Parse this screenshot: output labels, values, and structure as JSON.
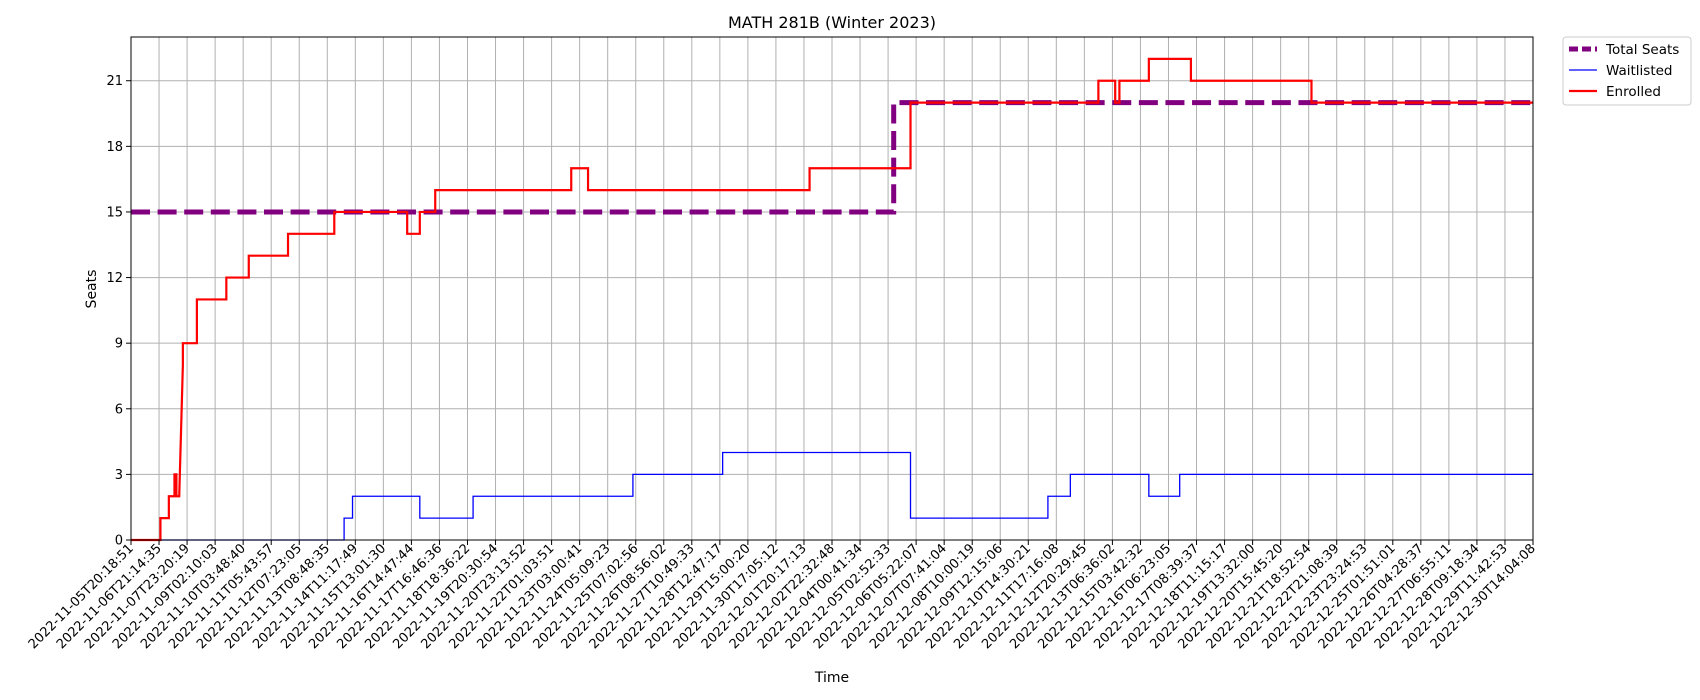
{
  "chart_data": {
    "type": "line",
    "title": "MATH 281B (Winter 2023)",
    "xlabel": "Time",
    "ylabel": "Seats",
    "ylim": [
      0,
      23
    ],
    "yticks": [
      0,
      3,
      6,
      9,
      12,
      15,
      18,
      21
    ],
    "grid": true,
    "legend_position": "outside-top-right",
    "x_tick_labels": [
      "2022-11-05T20:18:51",
      "2022-11-06T21:14:35",
      "2022-11-07T23:20:19",
      "2022-11-09T02:10:03",
      "2022-11-10T03:48:40",
      "2022-11-11T05:43:57",
      "2022-11-12T07:23:05",
      "2022-11-13T08:48:35",
      "2022-11-14T11:17:49",
      "2022-11-15T13:01:30",
      "2022-11-16T14:47:44",
      "2022-11-17T16:46:36",
      "2022-11-18T18:36:22",
      "2022-11-19T20:30:54",
      "2022-11-20T23:13:52",
      "2022-11-22T01:03:51",
      "2022-11-23T03:00:41",
      "2022-11-24T05:09:23",
      "2022-11-25T07:02:56",
      "2022-11-26T08:56:02",
      "2022-11-27T10:49:33",
      "2022-11-28T12:47:17",
      "2022-11-29T15:00:20",
      "2022-11-30T17:05:12",
      "2022-12-01T20:17:13",
      "2022-12-02T22:32:48",
      "2022-12-04T00:41:34",
      "2022-12-05T02:52:33",
      "2022-12-06T05:22:07",
      "2022-12-07T07:41:04",
      "2022-12-08T10:00:19",
      "2022-12-09T12:15:06",
      "2022-12-10T14:30:21",
      "2022-12-11T17:16:08",
      "2022-12-12T20:29:45",
      "2022-12-13T06:36:02",
      "2022-12-15T03:42:32",
      "2022-12-16T06:23:05",
      "2022-12-17T08:39:37",
      "2022-12-18T11:15:17",
      "2022-12-19T13:32:00",
      "2022-12-20T15:45:20",
      "2022-12-21T18:52:54",
      "2022-12-22T21:08:39",
      "2022-12-23T23:24:53",
      "2022-12-25T01:51:01",
      "2022-12-26T04:28:37",
      "2022-12-27T06:55:11",
      "2022-12-28T09:18:34",
      "2022-12-29T11:42:53",
      "2022-12-30T14:04:08"
    ],
    "x_range_ticks": [
      0,
      50
    ],
    "series": [
      {
        "name": "Total Seats",
        "color": "#800080",
        "style": "dashed",
        "step": true,
        "points": [
          [
            0,
            15
          ],
          [
            27.2,
            15
          ],
          [
            27.2,
            20
          ],
          [
            50,
            20
          ]
        ]
      },
      {
        "name": "Waitlisted",
        "color": "#0000ff",
        "style": "solid",
        "step": true,
        "points": [
          [
            0,
            0
          ],
          [
            7.6,
            0
          ],
          [
            7.6,
            1
          ],
          [
            7.9,
            1
          ],
          [
            7.9,
            2
          ],
          [
            10.3,
            2
          ],
          [
            10.3,
            1
          ],
          [
            12.2,
            1
          ],
          [
            12.2,
            2
          ],
          [
            17.9,
            2
          ],
          [
            17.9,
            3
          ],
          [
            21.1,
            3
          ],
          [
            21.1,
            4
          ],
          [
            27.8,
            4
          ],
          [
            27.8,
            1
          ],
          [
            32.7,
            1
          ],
          [
            32.7,
            2
          ],
          [
            33.5,
            2
          ],
          [
            33.5,
            3
          ],
          [
            36.3,
            3
          ],
          [
            36.3,
            2
          ],
          [
            37.4,
            2
          ],
          [
            37.4,
            3
          ],
          [
            50,
            3
          ]
        ]
      },
      {
        "name": "Enrolled",
        "color": "#ff0000",
        "style": "solid",
        "step": true,
        "points": [
          [
            0,
            0
          ],
          [
            1.05,
            0
          ],
          [
            1.05,
            1
          ],
          [
            1.35,
            1
          ],
          [
            1.35,
            2
          ],
          [
            1.55,
            2
          ],
          [
            1.55,
            3
          ],
          [
            1.62,
            3
          ],
          [
            1.62,
            2
          ],
          [
            1.72,
            2
          ],
          [
            1.85,
            8
          ],
          [
            1.85,
            9
          ],
          [
            2.35,
            9
          ],
          [
            2.35,
            11
          ],
          [
            3.4,
            11
          ],
          [
            3.4,
            12
          ],
          [
            4.2,
            12
          ],
          [
            4.2,
            13
          ],
          [
            5.6,
            13
          ],
          [
            5.6,
            14
          ],
          [
            7.25,
            14
          ],
          [
            7.25,
            15
          ],
          [
            9.85,
            15
          ],
          [
            9.85,
            14
          ],
          [
            10.3,
            14
          ],
          [
            10.3,
            15
          ],
          [
            10.85,
            15
          ],
          [
            10.85,
            16
          ],
          [
            15.7,
            16
          ],
          [
            15.7,
            17
          ],
          [
            16.3,
            17
          ],
          [
            16.3,
            16
          ],
          [
            24.2,
            16
          ],
          [
            24.2,
            17
          ],
          [
            27.8,
            17
          ],
          [
            27.8,
            20
          ],
          [
            34.5,
            20
          ],
          [
            34.5,
            21
          ],
          [
            35.1,
            21
          ],
          [
            35.1,
            20
          ],
          [
            35.25,
            20
          ],
          [
            35.25,
            21
          ],
          [
            36.3,
            21
          ],
          [
            36.3,
            22
          ],
          [
            37.8,
            22
          ],
          [
            37.8,
            21
          ],
          [
            42.1,
            21
          ],
          [
            42.1,
            20
          ],
          [
            50,
            20
          ]
        ]
      }
    ]
  }
}
